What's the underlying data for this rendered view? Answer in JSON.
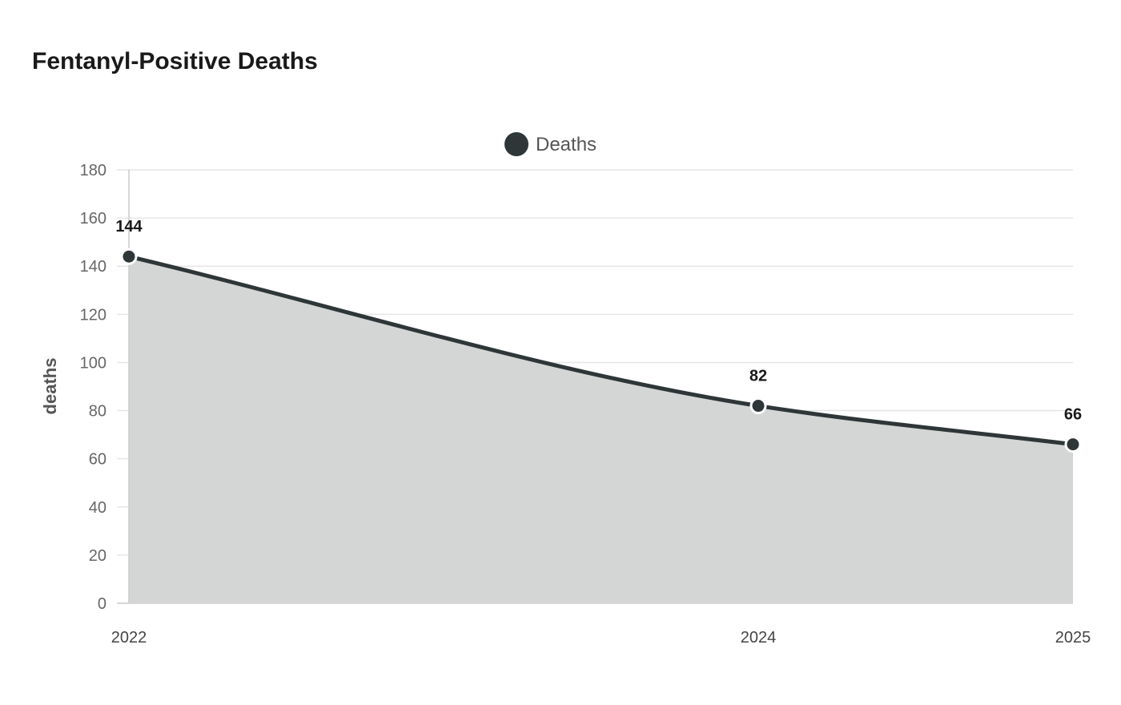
{
  "chart_data": {
    "type": "area",
    "title": "Fentanyl-Positive Deaths",
    "xlabel": "",
    "ylabel": "deaths",
    "categories": [
      "2022",
      "2024",
      "2025"
    ],
    "series": [
      {
        "name": "Deaths",
        "values": [
          144,
          82,
          66
        ],
        "color": "#2e3638",
        "fill": "#d4d6d5"
      }
    ],
    "ylim": [
      0,
      180
    ],
    "yticks": [
      0,
      20,
      40,
      60,
      80,
      100,
      120,
      140,
      160,
      180
    ],
    "grid": true,
    "legend": "top-center"
  }
}
